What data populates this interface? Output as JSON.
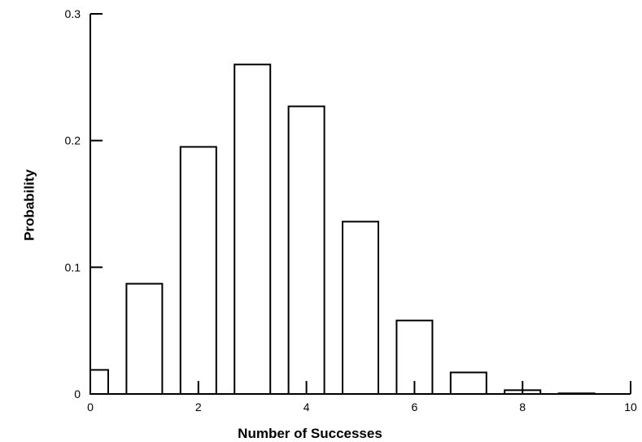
{
  "chart_data": {
    "type": "bar",
    "title": "",
    "xlabel": "Number of Successes",
    "ylabel": "Probability",
    "x": [
      0,
      1,
      2,
      3,
      4,
      5,
      6,
      7,
      8,
      9,
      10
    ],
    "values": [
      0.019,
      0.087,
      0.195,
      0.26,
      0.227,
      0.136,
      0.058,
      0.017,
      0.003,
      0.0005,
      0.0
    ],
    "xlim": [
      0,
      10
    ],
    "ylim": [
      0,
      0.3
    ],
    "xticks": [
      "0",
      "2",
      "4",
      "6",
      "8",
      "10"
    ],
    "yticks": [
      "0",
      "0.1",
      "0.2",
      "0.3"
    ],
    "grid": false,
    "bar_fill": "#ffffff",
    "bar_stroke": "#000000"
  }
}
